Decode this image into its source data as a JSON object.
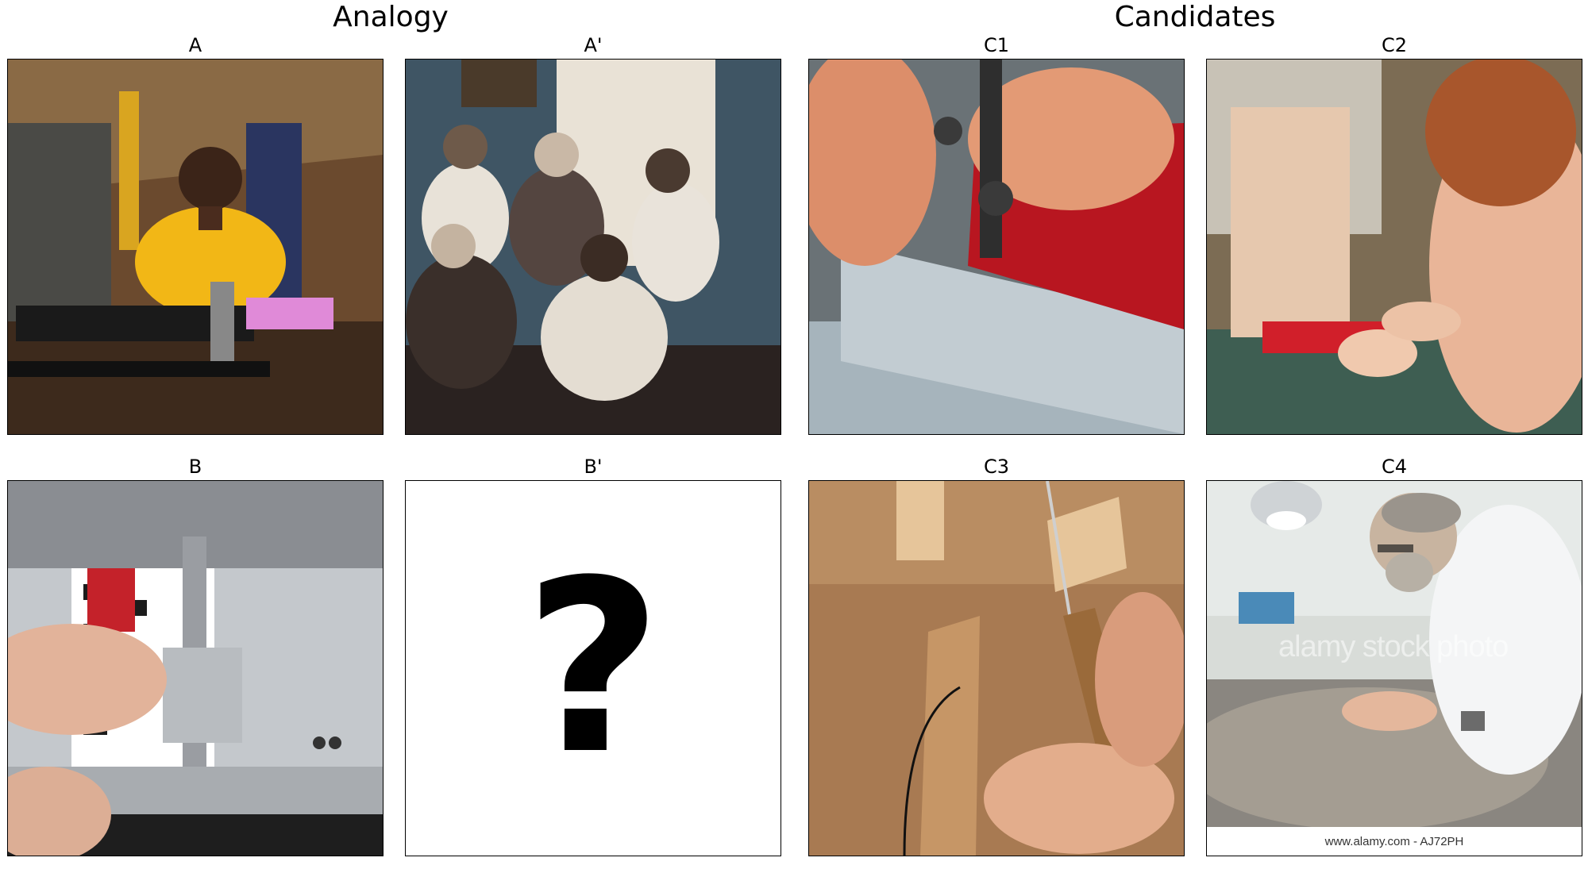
{
  "headers": {
    "analogy": "Analogy",
    "candidates": "Candidates"
  },
  "panels": {
    "a": "A",
    "a_prime": "A'",
    "b": "B",
    "b_prime": "B'",
    "c1": "C1",
    "c2": "C2",
    "c3": "C3",
    "c4": "C4"
  },
  "b_prime_placeholder": "?",
  "c4_watermark": "alamy stock photo",
  "c4_footer": "www.alamy.com - AJ72PH"
}
